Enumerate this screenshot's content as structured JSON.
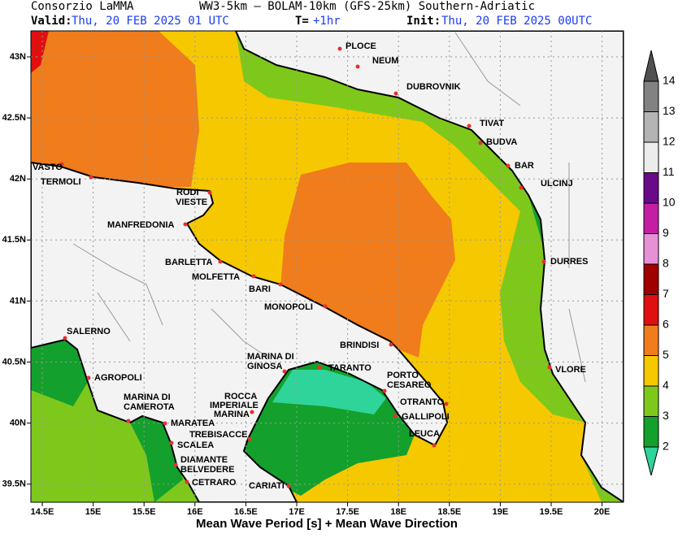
{
  "header": {
    "org": "Consorzio LaMMA",
    "model": "WW3-5km – BOLAM-10km (GFS-25km) Southern-Adriatic",
    "valid_label": "Valid:",
    "valid_time": "Thu, 20 FEB 2025  01 UTC",
    "step_label": "T=",
    "step": "+1hr",
    "init_label": "Init:",
    "init_time": "Thu, 20 FEB 2025 00UTC"
  },
  "map": {
    "lon_ticks": [
      "14.5E",
      "15E",
      "15.5E",
      "16E",
      "16.5E",
      "17E",
      "17.5E",
      "18E",
      "18.5E",
      "19E",
      "19.5E",
      "20E"
    ],
    "lat_ticks": [
      "43N",
      "42.5N",
      "42N",
      "41.5N",
      "41N",
      "40.5N",
      "40N",
      "39.5N"
    ],
    "places": [
      "PLOCE",
      "NEUM",
      "DUBROVNIK",
      "TIVAT",
      "BUDVA",
      "BAR",
      "ULCINJ",
      "DURRES",
      "VLORE",
      "VASTO",
      "TERMOLI",
      "RODI",
      "VIESTE",
      "MANFREDONIA",
      "BARLETTA",
      "MOLFETTA",
      "BARI",
      "MONOPOLI",
      "BRINDISI",
      "MARINA DI",
      "GINOSA",
      "TARANTO",
      "PORTO",
      "CESAREO",
      "OTRANTO",
      "GALLIPOLI",
      "LEUCA",
      "SALERNO",
      "AGROPOLI",
      "MARINA DI",
      "CAMEROTA",
      "ROCCA",
      "IMPERIALE",
      "MARINA",
      "MARATEA",
      "TREBISACCE",
      "SCALEA",
      "DIAMANTE",
      "BELVEDERE",
      "CETRARO",
      "CARIATI"
    ]
  },
  "colorbar": {
    "levels": [
      2,
      3,
      4,
      5,
      6,
      7,
      8,
      9,
      10,
      11,
      12,
      13,
      14
    ],
    "colors": [
      "#2fd49a",
      "#14a02c",
      "#7ec81c",
      "#f6c800",
      "#f07c1c",
      "#e01010",
      "#a00000",
      "#e690d6",
      "#c41ea4",
      "#6a0a8a",
      "#ececec",
      "#b4b4b4",
      "#828282",
      "#505050"
    ]
  },
  "footer": "Mean Wave Period [s] + Mean Wave Direction"
}
